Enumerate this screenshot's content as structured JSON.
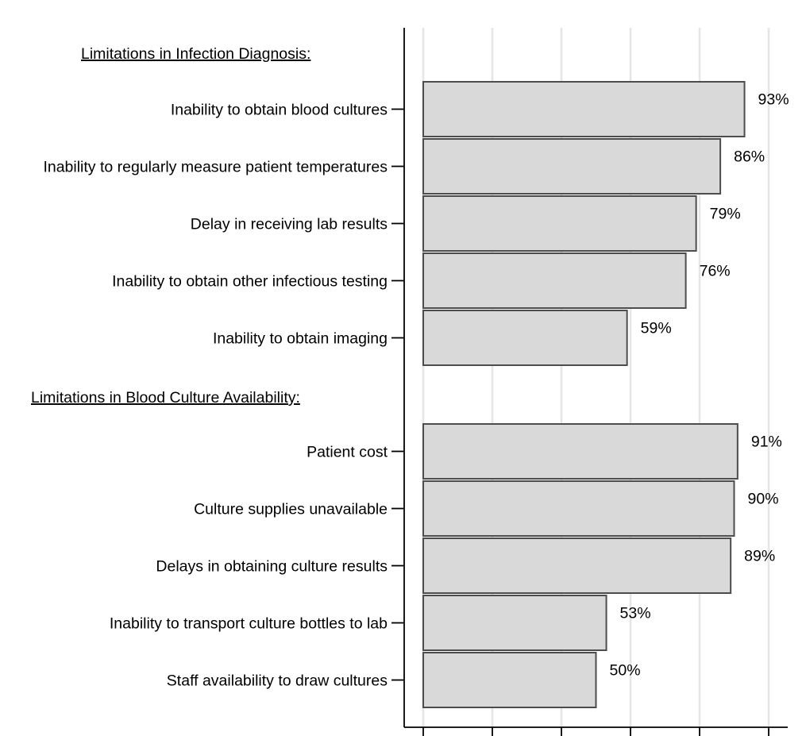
{
  "chart_data": {
    "type": "bar",
    "orientation": "horizontal",
    "grid": true,
    "xlim": [
      0,
      100
    ],
    "value_unit": "%",
    "colors": {
      "bar_fill": "#d9d9d9",
      "bar_stroke": "#4d4d4d",
      "grid": "#e6e6e6",
      "axis": "#000000"
    },
    "groups": [
      {
        "header": "Limitations in Infection Diagnosis:",
        "categories": [
          "Inability to obtain blood cultures",
          "Inability to regularly measure patient temperatures",
          "Delay in receiving lab results",
          "Inability to obtain other infectious testing",
          "Inability to obtain imaging"
        ],
        "values": [
          93,
          86,
          79,
          76,
          59
        ],
        "value_labels": [
          "93%",
          "86%",
          "79%",
          "76%",
          "59%"
        ]
      },
      {
        "header": "Limitations in Blood Culture Availability:",
        "categories": [
          "Patient cost",
          "Culture supplies unavailable",
          "Delays in obtaining culture results",
          "Inability to transport culture bottles to lab",
          "Staff availability to draw cultures"
        ],
        "values": [
          91,
          90,
          89,
          53,
          50
        ],
        "value_labels": [
          "91%",
          "90%",
          "89%",
          "53%",
          "50%"
        ]
      }
    ]
  }
}
